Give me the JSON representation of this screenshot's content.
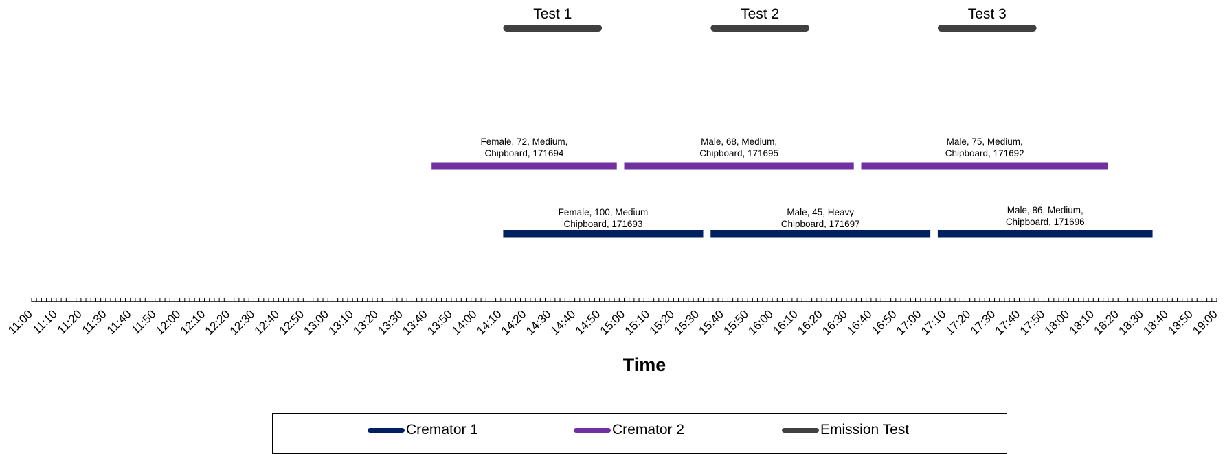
{
  "chart_data": {
    "type": "timeline",
    "xlabel": "Time",
    "x_ticks": [
      "11:00",
      "11:10",
      "11:20",
      "11:30",
      "11:40",
      "11:50",
      "12:00",
      "12:10",
      "12:20",
      "12:30",
      "12:40",
      "12:50",
      "13:00",
      "13:10",
      "13:20",
      "13:30",
      "13:40",
      "13:50",
      "14:00",
      "14:10",
      "14:20",
      "14:30",
      "14:40",
      "14:50",
      "15:00",
      "15:10",
      "15:20",
      "15:30",
      "15:40",
      "15:50",
      "16:00",
      "16:10",
      "16:20",
      "16:30",
      "16:40",
      "16:50",
      "17:00",
      "17:10",
      "17:20",
      "17:30",
      "17:40",
      "17:50",
      "18:00",
      "18:10",
      "18:20",
      "18:30",
      "18:40",
      "18:50",
      "19:00"
    ],
    "xlim": [
      "11:00",
      "19:00"
    ],
    "grid": false,
    "legend_position": "bottom",
    "series": [
      {
        "name": "Emission Test",
        "color": "#404040",
        "bars": [
          {
            "label": "Test 1",
            "start": "14:11",
            "end": "14:51"
          },
          {
            "label": "Test 2",
            "start": "15:35",
            "end": "16:15"
          },
          {
            "label": "Test 3",
            "start": "17:07",
            "end": "17:47"
          }
        ]
      },
      {
        "name": "Cremator 2",
        "color": "#7030A0",
        "bars": [
          {
            "label": [
              "Female, 72, Medium,",
              "Chipboard, 171694"
            ],
            "start": "13:42",
            "end": "14:57"
          },
          {
            "label": [
              "Male, 68, Medium,",
              "Chipboard, 171695"
            ],
            "start": "15:00",
            "end": "16:33"
          },
          {
            "label": [
              "Male, 75, Medium,",
              "Chipboard, 171692"
            ],
            "start": "16:36",
            "end": "18:16"
          }
        ]
      },
      {
        "name": "Cremator 1",
        "color": "#002060",
        "bars": [
          {
            "label": [
              "Female, 100,  Medium",
              "Chipboard, 171693"
            ],
            "start": "14:11",
            "end": "15:32"
          },
          {
            "label": [
              "Male, 45, Heavy",
              "Chipboard, 171697"
            ],
            "start": "15:35",
            "end": "17:04"
          },
          {
            "label": [
              "Male, 86, Medium,",
              "Chipboard, 171696"
            ],
            "start": "17:07",
            "end": "18:34"
          }
        ]
      }
    ],
    "legend": [
      {
        "name": "Cremator 1",
        "color": "#002060"
      },
      {
        "name": "Cremator 2",
        "color": "#7030A0"
      },
      {
        "name": "Emission Test",
        "color": "#404040"
      }
    ]
  }
}
